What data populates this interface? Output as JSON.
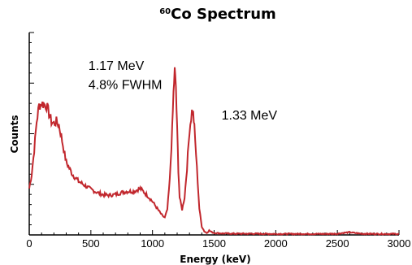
{
  "chart_data": {
    "type": "line",
    "title": {
      "superscript": "60",
      "main": "Co Spectrum"
    },
    "xlabel": "Energy (keV)",
    "ylabel": "Counts",
    "xlim": [
      0,
      3000
    ],
    "ylim": [
      0,
      1000
    ],
    "x_ticks": [
      0,
      500,
      1000,
      1500,
      2000,
      2500,
      3000
    ],
    "y_tick_labels_shown": false,
    "grid": false,
    "line_color": "#c1272d",
    "annotations": [
      {
        "text": "1.17 MeV",
        "x": 480,
        "y": 815
      },
      {
        "text": "4.8% FWHM",
        "x": 480,
        "y": 720
      },
      {
        "text": "1.33 MeV",
        "x": 1560,
        "y": 570
      }
    ],
    "series": [
      {
        "x": [
          0,
          20,
          40,
          60,
          80,
          100,
          120,
          140,
          160,
          180,
          200,
          220,
          240,
          260,
          280,
          300,
          350,
          400,
          450,
          500,
          550,
          600,
          650,
          700,
          750,
          800,
          850,
          900,
          950,
          1000,
          1050,
          1080,
          1100,
          1120,
          1140,
          1160,
          1170,
          1180,
          1190,
          1200,
          1210,
          1220,
          1240,
          1260,
          1280,
          1300,
          1320,
          1330,
          1340,
          1360,
          1380,
          1400,
          1420,
          1440,
          1460,
          1480,
          1500,
          1550,
          1600,
          1700,
          1800,
          2000,
          2200,
          2400,
          2500,
          2550,
          2600,
          2650,
          2700,
          2800,
          3000
        ],
        "y": [
          230,
          300,
          420,
          560,
          640,
          650,
          645,
          640,
          600,
          560,
          550,
          560,
          545,
          490,
          420,
          360,
          300,
          265,
          245,
          225,
          210,
          198,
          196,
          200,
          210,
          215,
          215,
          230,
          200,
          165,
          120,
          95,
          85,
          125,
          270,
          520,
          700,
          810,
          730,
          520,
          320,
          185,
          125,
          185,
          330,
          520,
          610,
          600,
          530,
          330,
          130,
          42,
          18,
          10,
          22,
          14,
          10,
          8,
          7,
          6,
          6,
          5,
          5,
          5,
          6,
          10,
          13,
          9,
          6,
          5,
          5
        ]
      }
    ]
  }
}
